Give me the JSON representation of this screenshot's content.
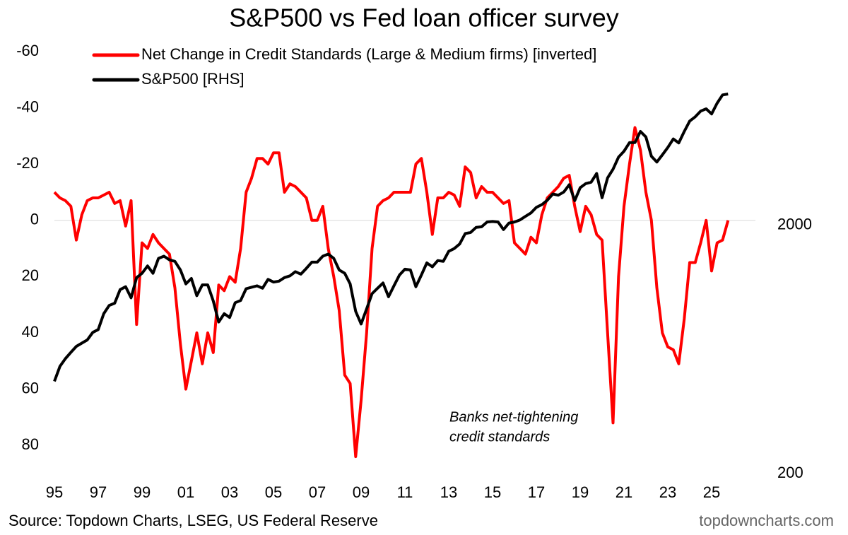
{
  "chart_data": {
    "type": "line",
    "title": "S&P500 vs Fed loan officer survey",
    "source": "Source: Topdown Charts, LSEG, US Federal Reserve",
    "watermark": "topdowncharts.com",
    "annotation": [
      "Banks net-tightening",
      "credit standards"
    ],
    "y_inverted": true,
    "y2_log": true,
    "legend": "top-left",
    "xlim": [
      1995,
      2027
    ],
    "xticks": [
      {
        "value": 1995,
        "label": "95"
      },
      {
        "value": 1997,
        "label": "97"
      },
      {
        "value": 1999,
        "label": "99"
      },
      {
        "value": 2001,
        "label": "01"
      },
      {
        "value": 2003,
        "label": "03"
      },
      {
        "value": 2005,
        "label": "05"
      },
      {
        "value": 2007,
        "label": "07"
      },
      {
        "value": 2009,
        "label": "09"
      },
      {
        "value": 2011,
        "label": "11"
      },
      {
        "value": 2013,
        "label": "13"
      },
      {
        "value": 2015,
        "label": "15"
      },
      {
        "value": 2017,
        "label": "17"
      },
      {
        "value": 2019,
        "label": "19"
      },
      {
        "value": 2021,
        "label": "21"
      },
      {
        "value": 2023,
        "label": "23"
      },
      {
        "value": 2025,
        "label": "25"
      }
    ],
    "ylim": [
      -60,
      90
    ],
    "yticks": [
      -60,
      -40,
      -20,
      0,
      20,
      40,
      60,
      80
    ],
    "y2lim": [
      200,
      10000
    ],
    "y2ticks": [
      200,
      2000
    ],
    "x": [
      1995,
      1995.25,
      1995.5,
      1995.75,
      1996,
      1996.25,
      1996.5,
      1996.75,
      1997,
      1997.25,
      1997.5,
      1997.75,
      1998,
      1998.25,
      1998.5,
      1998.75,
      1999,
      1999.25,
      1999.5,
      1999.75,
      2000,
      2000.25,
      2000.5,
      2000.75,
      2001,
      2001.25,
      2001.5,
      2001.75,
      2002,
      2002.25,
      2002.5,
      2002.75,
      2003,
      2003.25,
      2003.5,
      2003.75,
      2004,
      2004.25,
      2004.5,
      2004.75,
      2005,
      2005.25,
      2005.5,
      2005.75,
      2006,
      2006.25,
      2006.5,
      2006.75,
      2007,
      2007.25,
      2007.5,
      2007.75,
      2008,
      2008.25,
      2008.5,
      2008.75,
      2009,
      2009.25,
      2009.5,
      2009.75,
      2010,
      2010.25,
      2010.5,
      2010.75,
      2011,
      2011.25,
      2011.5,
      2011.75,
      2012,
      2012.25,
      2012.5,
      2012.75,
      2013,
      2013.25,
      2013.5,
      2013.75,
      2014,
      2014.25,
      2014.5,
      2014.75,
      2015,
      2015.25,
      2015.5,
      2015.75,
      2016,
      2016.25,
      2016.5,
      2016.75,
      2017,
      2017.25,
      2017.5,
      2017.75,
      2018,
      2018.25,
      2018.5,
      2018.75,
      2019,
      2019.25,
      2019.5,
      2019.75,
      2020,
      2020.25,
      2020.5,
      2020.75,
      2021,
      2021.25,
      2021.5,
      2021.75,
      2022,
      2022.25,
      2022.5,
      2022.75,
      2023,
      2023.25,
      2023.5,
      2023.75,
      2024,
      2024.25,
      2024.5,
      2024.75,
      2025,
      2025.25,
      2025.5,
      2025.75
    ],
    "series": [
      {
        "name": "Net Change in Credit Standards (Large & Medium firms) [inverted]",
        "color": "#ff0000",
        "axis": "y",
        "values": [
          -10,
          -8,
          -7,
          -5,
          7,
          -2,
          -7,
          -8,
          -8,
          -9,
          -10,
          -6,
          -7,
          2,
          -7,
          37,
          8,
          10,
          5,
          8,
          10,
          12,
          24,
          44,
          60,
          50,
          40,
          51,
          40,
          47,
          23,
          25,
          20,
          22,
          10,
          -10,
          -15,
          -22,
          -22,
          -20,
          -24,
          -24,
          -10,
          -13,
          -12,
          -10,
          -8,
          0,
          0,
          -5,
          10,
          20,
          32,
          55,
          58,
          84,
          64,
          40,
          10,
          -5,
          -7,
          -8,
          -10,
          -10,
          -10,
          -10,
          -20,
          -22,
          -10,
          5,
          -8,
          -8,
          -10,
          -9,
          -5,
          -19,
          -17,
          -8,
          -12,
          -10,
          -10,
          -8,
          -6,
          -7,
          8,
          10,
          12,
          6,
          8,
          -2,
          -8,
          -10,
          -12,
          -15,
          -16,
          -5,
          4,
          -5,
          -2,
          5,
          7,
          40,
          72,
          20,
          -5,
          -20,
          -33,
          -25,
          -10,
          0,
          24,
          40,
          45,
          46,
          51,
          35,
          15,
          15,
          8,
          0,
          18,
          8,
          7,
          0
        ]
      },
      {
        "name": "S&P500 [RHS]",
        "color": "#000000",
        "axis": "y2",
        "values": [
          470,
          540,
          580,
          615,
          650,
          670,
          690,
          740,
          760,
          880,
          950,
          970,
          1100,
          1130,
          1020,
          1230,
          1280,
          1370,
          1280,
          1470,
          1500,
          1450,
          1430,
          1320,
          1160,
          1220,
          1040,
          1150,
          1150,
          990,
          815,
          880,
          850,
          975,
          995,
          1110,
          1125,
          1140,
          1115,
          1210,
          1180,
          1190,
          1230,
          1250,
          1300,
          1270,
          1340,
          1420,
          1420,
          1500,
          1530,
          1470,
          1320,
          1280,
          1160,
          900,
          800,
          920,
          1060,
          1115,
          1170,
          1030,
          1140,
          1260,
          1330,
          1320,
          1130,
          1260,
          1410,
          1360,
          1440,
          1430,
          1570,
          1610,
          1680,
          1850,
          1870,
          1960,
          1970,
          2060,
          2070,
          2060,
          1920,
          2040,
          2060,
          2100,
          2170,
          2240,
          2360,
          2420,
          2520,
          2670,
          2640,
          2720,
          2910,
          2510,
          2830,
          2940,
          2980,
          3230,
          2580,
          3100,
          3360,
          3760,
          3970,
          4300,
          4300,
          4770,
          4530,
          3790,
          3590,
          3840,
          4110,
          4450,
          4290,
          4770,
          5250,
          5460,
          5760,
          5880,
          5610,
          6200,
          6690,
          6750
        ]
      }
    ]
  }
}
